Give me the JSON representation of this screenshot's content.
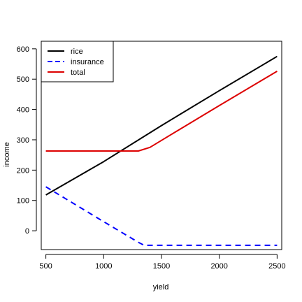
{
  "chart_data": {
    "type": "line",
    "xlabel": "yield",
    "ylabel": "income",
    "xlim": [
      460,
      2540
    ],
    "ylim": [
      -62,
      625
    ],
    "x_ticks": [
      500,
      1000,
      1500,
      2000,
      2500
    ],
    "y_ticks": [
      0,
      100,
      200,
      300,
      400,
      500,
      600
    ],
    "legend_position": "top-left",
    "grid": false,
    "series": [
      {
        "name": "rice",
        "color": "#000000",
        "dash": "solid",
        "x": [
          500,
          1000,
          1500,
          2000,
          2500
        ],
        "y": [
          118,
          228,
          347,
          462,
          575
        ]
      },
      {
        "name": "insurance",
        "color": "#0000ff",
        "dash": "dashed",
        "x": [
          500,
          1000,
          1300,
          1350,
          1500,
          2000,
          2500
        ],
        "y": [
          145,
          30,
          -38,
          -48,
          -48,
          -48,
          -48
        ]
      },
      {
        "name": "total",
        "color": "#dd0000",
        "dash": "solid",
        "x": [
          500,
          1000,
          1300,
          1400,
          1500,
          2000,
          2500
        ],
        "y": [
          263,
          263,
          263,
          275,
          298,
          413,
          526
        ]
      }
    ]
  }
}
